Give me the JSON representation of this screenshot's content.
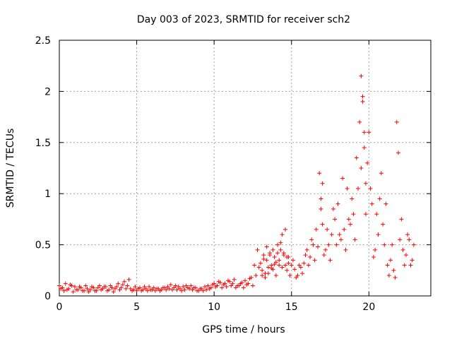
{
  "chart_data": {
    "type": "scatter",
    "title": "Day 003 of 2023, SRMTID for receiver sch2",
    "xlabel": "GPS time / hours",
    "ylabel": "SRMTID / TECUs",
    "xlim": [
      0,
      24
    ],
    "ylim": [
      0,
      2.5
    ],
    "xticks": [
      0,
      5,
      10,
      15,
      20
    ],
    "xtick_labels": [
      "0",
      "5",
      "10",
      "15",
      "20"
    ],
    "yticks": [
      0,
      0.5,
      1,
      1.5,
      2,
      2.5
    ],
    "ytick_labels": [
      "0",
      "0.5",
      "1",
      "1.5",
      "2",
      "2.5"
    ],
    "grid": true,
    "marker": "+",
    "series": [
      {
        "name": "sch2",
        "color": "#ff0000",
        "x": [
          0.0,
          0.2,
          0.4,
          0.6,
          0.8,
          1.0,
          1.2,
          1.4,
          1.6,
          1.8,
          2.0,
          2.2,
          2.4,
          2.6,
          2.8,
          3.0,
          3.2,
          3.4,
          3.6,
          3.8,
          4.0,
          4.2,
          4.4,
          4.6,
          4.8,
          5.0,
          5.2,
          5.4,
          5.6,
          5.8,
          6.0,
          6.2,
          6.4,
          6.6,
          6.8,
          7.0,
          7.2,
          7.4,
          7.6,
          7.8,
          8.0,
          8.2,
          8.4,
          8.6,
          8.8,
          9.0,
          9.2,
          9.4,
          9.6,
          9.8,
          10.0,
          10.2,
          10.4,
          10.6,
          10.8,
          11.0,
          11.2,
          11.4,
          11.6,
          11.8,
          12.0,
          12.2,
          12.4,
          12.6,
          12.8,
          13.0,
          13.1,
          13.2,
          13.3,
          13.4,
          13.5,
          13.6,
          13.7,
          13.8,
          13.9,
          14.0,
          14.1,
          14.2,
          14.3,
          14.4,
          14.5,
          14.6,
          14.7,
          14.8,
          15.0,
          15.2,
          15.4,
          15.6,
          15.8,
          16.0,
          16.2,
          16.4,
          16.6,
          16.8,
          16.9,
          17.0,
          17.2,
          17.4,
          17.6,
          17.8,
          18.0,
          18.2,
          18.4,
          18.6,
          18.8,
          19.0,
          19.2,
          19.4,
          19.5,
          19.6,
          19.7,
          19.8,
          20.0,
          20.2,
          20.4,
          20.6,
          20.8,
          21.0,
          21.2,
          21.4,
          21.6,
          21.8,
          22.0,
          22.2,
          22.4,
          22.6,
          22.8
        ],
        "y": [
          0.1,
          0.08,
          0.12,
          0.07,
          0.1,
          0.09,
          0.06,
          0.08,
          0.05,
          0.07,
          0.06,
          0.08,
          0.05,
          0.1,
          0.07,
          0.09,
          0.06,
          0.08,
          0.07,
          0.12,
          0.08,
          0.14,
          0.1,
          0.07,
          0.06,
          0.05,
          0.08,
          0.06,
          0.07,
          0.09,
          0.06,
          0.05,
          0.07,
          0.06,
          0.08,
          0.09,
          0.11,
          0.08,
          0.06,
          0.07,
          0.09,
          0.1,
          0.07,
          0.06,
          0.08,
          0.05,
          0.07,
          0.09,
          0.1,
          0.08,
          0.12,
          0.1,
          0.13,
          0.11,
          0.09,
          0.14,
          0.12,
          0.08,
          0.1,
          0.13,
          0.15,
          0.12,
          0.18,
          0.3,
          0.45,
          0.32,
          0.25,
          0.4,
          0.22,
          0.35,
          0.28,
          0.42,
          0.3,
          0.26,
          0.38,
          0.33,
          0.5,
          0.35,
          0.45,
          0.6,
          0.42,
          0.3,
          0.25,
          0.38,
          0.3,
          0.26,
          0.2,
          0.28,
          0.32,
          0.45,
          0.38,
          0.5,
          0.65,
          1.2,
          0.85,
          0.7,
          0.45,
          0.5,
          0.6,
          0.75,
          0.9,
          0.55,
          0.65,
          1.05,
          0.7,
          0.8,
          1.35,
          1.7,
          2.15,
          1.95,
          1.45,
          0.8,
          1.6,
          0.9,
          0.45,
          0.6,
          1.2,
          0.5,
          0.3,
          0.35,
          0.25,
          1.7,
          0.55,
          0.45,
          0.4,
          0.55,
          0.35
        ],
        "y_extra": [
          0.07,
          0.05,
          0.06,
          0.11,
          0.04,
          0.06,
          0.09,
          0.05,
          0.1,
          0.04,
          0.09,
          0.05,
          0.08,
          0.06,
          0.09,
          0.05,
          0.1,
          0.04,
          0.09,
          0.06,
          0.11,
          0.07,
          0.16,
          0.05,
          0.09,
          0.07,
          0.05,
          0.09,
          0.05,
          0.06,
          0.08,
          0.07,
          0.05,
          0.08,
          0.06,
          0.07,
          0.06,
          0.1,
          0.09,
          0.05,
          0.06,
          0.08,
          0.1,
          0.08,
          0.05,
          0.07,
          0.05,
          0.06,
          0.07,
          0.11,
          0.09,
          0.14,
          0.08,
          0.12,
          0.15,
          0.1,
          0.16,
          0.1,
          0.12,
          0.08,
          0.11,
          0.17,
          0.1,
          0.2,
          0.28,
          0.2,
          0.36,
          0.18,
          0.48,
          0.22,
          0.4,
          0.27,
          0.45,
          0.31,
          0.2,
          0.42,
          0.3,
          0.52,
          0.28,
          0.4,
          0.65,
          0.38,
          0.32,
          0.2,
          0.35,
          0.18,
          0.3,
          0.22,
          0.4,
          0.3,
          0.55,
          0.35,
          0.48,
          0.95,
          1.1,
          0.4,
          0.65,
          0.35,
          0.85,
          0.5,
          0.6,
          1.15,
          0.45,
          0.75,
          0.95,
          0.55,
          1.05,
          1.25,
          1.9,
          1.6,
          1.1,
          1.3,
          1.05,
          0.38,
          0.8,
          0.95,
          0.7,
          0.9,
          0.2,
          0.5,
          0.18,
          1.4,
          0.75,
          0.3,
          0.6,
          0.3,
          0.5
        ]
      }
    ]
  }
}
